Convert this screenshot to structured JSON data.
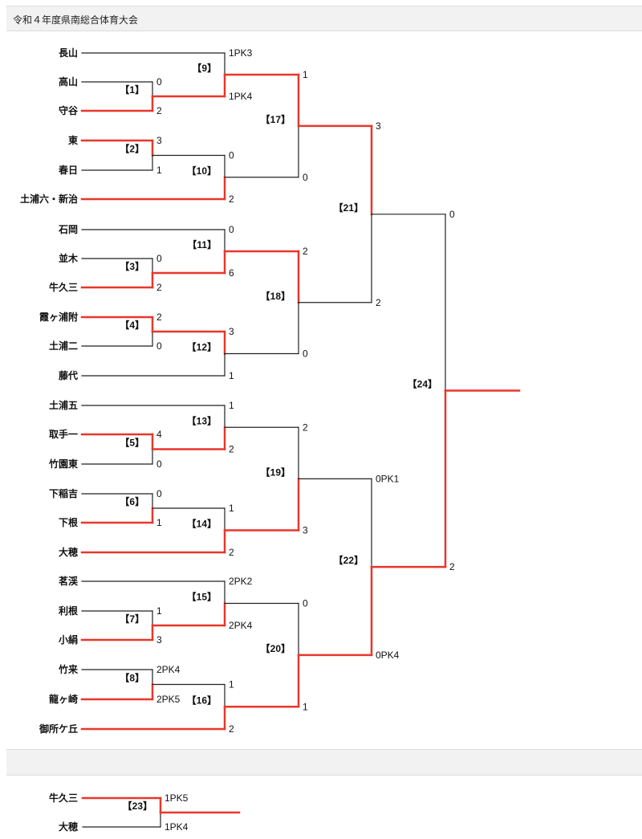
{
  "title": "令和４年度県南総合体育大会",
  "colors": {
    "win": "#e8372b",
    "loss": "#222222"
  },
  "teams": [
    {
      "id": "t1",
      "name": "長山"
    },
    {
      "id": "t2",
      "name": "高山"
    },
    {
      "id": "t3",
      "name": "守谷"
    },
    {
      "id": "t4",
      "name": "東"
    },
    {
      "id": "t5",
      "name": "春日"
    },
    {
      "id": "t6",
      "name": "土浦六・新治"
    },
    {
      "id": "t7",
      "name": "石岡"
    },
    {
      "id": "t8",
      "name": "並木"
    },
    {
      "id": "t9",
      "name": "牛久三"
    },
    {
      "id": "t10",
      "name": "霞ヶ浦附"
    },
    {
      "id": "t11",
      "name": "土浦二"
    },
    {
      "id": "t12",
      "name": "藤代"
    },
    {
      "id": "t13",
      "name": "土浦五"
    },
    {
      "id": "t14",
      "name": "取手一"
    },
    {
      "id": "t15",
      "name": "竹園東"
    },
    {
      "id": "t16",
      "name": "下稲吉"
    },
    {
      "id": "t17",
      "name": "下根"
    },
    {
      "id": "t18",
      "name": "大穂"
    },
    {
      "id": "t19",
      "name": "茗渓"
    },
    {
      "id": "t20",
      "name": "利根"
    },
    {
      "id": "t21",
      "name": "小絹"
    },
    {
      "id": "t22",
      "name": "竹来"
    },
    {
      "id": "t23",
      "name": "龍ヶ崎"
    },
    {
      "id": "t24",
      "name": "御所ケ丘"
    }
  ],
  "matches": [
    {
      "num": "【1】",
      "a": "t2",
      "b": "t3",
      "score_a": "0",
      "score_b": "2",
      "winner": "b"
    },
    {
      "num": "【2】",
      "a": "t4",
      "b": "t5",
      "score_a": "3",
      "score_b": "1",
      "winner": "a"
    },
    {
      "num": "【3】",
      "a": "t8",
      "b": "t9",
      "score_a": "0",
      "score_b": "2",
      "winner": "b"
    },
    {
      "num": "【4】",
      "a": "t10",
      "b": "t11",
      "score_a": "2",
      "score_b": "0",
      "winner": "a"
    },
    {
      "num": "【5】",
      "a": "t14",
      "b": "t15",
      "score_a": "4",
      "score_b": "0",
      "winner": "a"
    },
    {
      "num": "【6】",
      "a": "t16",
      "b": "t17",
      "score_a": "0",
      "score_b": "1",
      "winner": "b"
    },
    {
      "num": "【7】",
      "a": "t20",
      "b": "t21",
      "score_a": "1",
      "score_b": "3",
      "winner": "b"
    },
    {
      "num": "【8】",
      "a": "t22",
      "b": "t23",
      "score_a": "2PK4",
      "score_b": "2PK5",
      "winner": "b"
    },
    {
      "num": "【9】",
      "a": "t1",
      "b": "m1",
      "score_a": "1PK3",
      "score_b": "1PK4",
      "winner": "b"
    },
    {
      "num": "【10】",
      "a": "m2",
      "b": "t6",
      "score_a": "0",
      "score_b": "2",
      "winner": "b"
    },
    {
      "num": "【11】",
      "a": "t7",
      "b": "m3",
      "score_a": "0",
      "score_b": "6",
      "winner": "b"
    },
    {
      "num": "【12】",
      "a": "m4",
      "b": "t12",
      "score_a": "3",
      "score_b": "1",
      "winner": "a"
    },
    {
      "num": "【13】",
      "a": "t13",
      "b": "m5",
      "score_a": "1",
      "score_b": "2",
      "winner": "b"
    },
    {
      "num": "【14】",
      "a": "m6",
      "b": "t18",
      "score_a": "1",
      "score_b": "2",
      "winner": "b"
    },
    {
      "num": "【15】",
      "a": "t19",
      "b": "m7",
      "score_a": "2PK2",
      "score_b": "2PK4",
      "winner": "b"
    },
    {
      "num": "【16】",
      "a": "m8",
      "b": "t24",
      "score_a": "1",
      "score_b": "2",
      "winner": "b"
    },
    {
      "num": "【17】",
      "a": "m9",
      "b": "m10",
      "score_a": "1",
      "score_b": "0",
      "winner": "a"
    },
    {
      "num": "【18】",
      "a": "m11",
      "b": "m12",
      "score_a": "2",
      "score_b": "0",
      "winner": "a"
    },
    {
      "num": "【19】",
      "a": "m13",
      "b": "m14",
      "score_a": "2",
      "score_b": "3",
      "winner": "b"
    },
    {
      "num": "【20】",
      "a": "m15",
      "b": "m16",
      "score_a": "0",
      "score_b": "1",
      "winner": "b"
    },
    {
      "num": "【21】",
      "a": "m17",
      "b": "m18",
      "score_a": "3",
      "score_b": "2",
      "winner": "a"
    },
    {
      "num": "【22】",
      "a": "m19",
      "b": "m20",
      "score_a": "0PK1",
      "score_b": "0PK4",
      "winner": "b"
    },
    {
      "num": "【24】",
      "a": "m21",
      "b": "m22",
      "score_a": "0",
      "score_b": "2",
      "winner": "b"
    }
  ],
  "third_place": {
    "num": "【23】",
    "team_a": "牛久三",
    "team_b": "大穂",
    "score_a": "1PK5",
    "score_b": "1PK4",
    "winner": "a"
  }
}
